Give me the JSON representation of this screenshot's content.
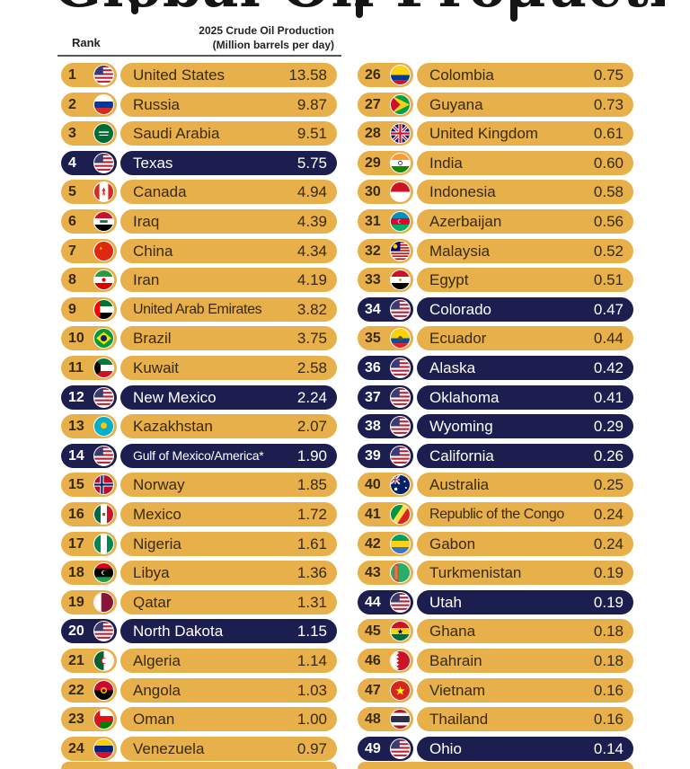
{
  "header": {
    "title_partial": "Global Oil Production",
    "rank_label": "Rank",
    "production_label_line1": "2025 Crude Oil Production",
    "production_label_line2": "(Million barrels per day)"
  },
  "colors": {
    "country_pill": "#e8b04a",
    "us_state_pill": "#1c1e4f",
    "country_text": "#3a2a0d",
    "state_text": "#ffffff"
  },
  "chart_data": {
    "type": "table",
    "columns": [
      "Rank",
      "Name",
      "2025 Crude Oil Production (Million barrels per day)"
    ],
    "rows": [
      {
        "rank": "1",
        "name": "United States",
        "value": "13.58",
        "kind": "country",
        "flag": "us-flag"
      },
      {
        "rank": "2",
        "name": "Russia",
        "value": "9.87",
        "kind": "country",
        "flag": "russia-flag"
      },
      {
        "rank": "3",
        "name": "Saudi Arabia",
        "value": "9.51",
        "kind": "country",
        "flag": "saudi-arabia-flag"
      },
      {
        "rank": "4",
        "name": "Texas",
        "value": "5.75",
        "kind": "state",
        "flag": "us-flag"
      },
      {
        "rank": "5",
        "name": "Canada",
        "value": "4.94",
        "kind": "country",
        "flag": "canada-flag"
      },
      {
        "rank": "6",
        "name": "Iraq",
        "value": "4.39",
        "kind": "country",
        "flag": "iraq-flag"
      },
      {
        "rank": "7",
        "name": "China",
        "value": "4.34",
        "kind": "country",
        "flag": "china-flag"
      },
      {
        "rank": "8",
        "name": "Iran",
        "value": "4.19",
        "kind": "country",
        "flag": "iran-flag"
      },
      {
        "rank": "9",
        "name": "United Arab Emirates",
        "value": "3.82",
        "kind": "country",
        "flag": "uae-flag"
      },
      {
        "rank": "10",
        "name": "Brazil",
        "value": "3.75",
        "kind": "country",
        "flag": "brazil-flag"
      },
      {
        "rank": "11",
        "name": "Kuwait",
        "value": "2.58",
        "kind": "country",
        "flag": "kuwait-flag"
      },
      {
        "rank": "12",
        "name": "New Mexico",
        "value": "2.24",
        "kind": "state",
        "flag": "us-flag"
      },
      {
        "rank": "13",
        "name": "Kazakhstan",
        "value": "2.07",
        "kind": "country",
        "flag": "kazakhstan-flag"
      },
      {
        "rank": "14",
        "name": "Gulf of Mexico/America*",
        "value": "1.90",
        "kind": "state",
        "flag": "us-flag"
      },
      {
        "rank": "15",
        "name": "Norway",
        "value": "1.85",
        "kind": "country",
        "flag": "norway-flag"
      },
      {
        "rank": "16",
        "name": "Mexico",
        "value": "1.72",
        "kind": "country",
        "flag": "mexico-flag"
      },
      {
        "rank": "17",
        "name": "Nigeria",
        "value": "1.61",
        "kind": "country",
        "flag": "nigeria-flag"
      },
      {
        "rank": "18",
        "name": "Libya",
        "value": "1.36",
        "kind": "country",
        "flag": "libya-flag"
      },
      {
        "rank": "19",
        "name": "Qatar",
        "value": "1.31",
        "kind": "country",
        "flag": "qatar-flag"
      },
      {
        "rank": "20",
        "name": "North Dakota",
        "value": "1.15",
        "kind": "state",
        "flag": "us-flag"
      },
      {
        "rank": "21",
        "name": "Algeria",
        "value": "1.14",
        "kind": "country",
        "flag": "algeria-flag"
      },
      {
        "rank": "22",
        "name": "Angola",
        "value": "1.03",
        "kind": "country",
        "flag": "angola-flag"
      },
      {
        "rank": "23",
        "name": "Oman",
        "value": "1.00",
        "kind": "country",
        "flag": "oman-flag"
      },
      {
        "rank": "24",
        "name": "Venezuela",
        "value": "0.97",
        "kind": "country",
        "flag": "venezuela-flag"
      },
      {
        "rank": "26",
        "name": "Colombia",
        "value": "0.75",
        "kind": "country",
        "flag": "colombia-flag"
      },
      {
        "rank": "27",
        "name": "Guyana",
        "value": "0.73",
        "kind": "country",
        "flag": "guyana-flag"
      },
      {
        "rank": "28",
        "name": "United Kingdom",
        "value": "0.61",
        "kind": "country",
        "flag": "uk-flag"
      },
      {
        "rank": "29",
        "name": "India",
        "value": "0.60",
        "kind": "country",
        "flag": "india-flag"
      },
      {
        "rank": "30",
        "name": "Indonesia",
        "value": "0.58",
        "kind": "country",
        "flag": "indonesia-flag"
      },
      {
        "rank": "31",
        "name": "Azerbaijan",
        "value": "0.56",
        "kind": "country",
        "flag": "azerbaijan-flag"
      },
      {
        "rank": "32",
        "name": "Malaysia",
        "value": "0.52",
        "kind": "country",
        "flag": "malaysia-flag"
      },
      {
        "rank": "33",
        "name": "Egypt",
        "value": "0.51",
        "kind": "country",
        "flag": "egypt-flag"
      },
      {
        "rank": "34",
        "name": "Colorado",
        "value": "0.47",
        "kind": "state",
        "flag": "us-flag"
      },
      {
        "rank": "35",
        "name": "Ecuador",
        "value": "0.44",
        "kind": "country",
        "flag": "ecuador-flag"
      },
      {
        "rank": "36",
        "name": "Alaska",
        "value": "0.42",
        "kind": "state",
        "flag": "us-flag"
      },
      {
        "rank": "37",
        "name": "Oklahoma",
        "value": "0.41",
        "kind": "state",
        "flag": "us-flag"
      },
      {
        "rank": "38",
        "name": "Wyoming",
        "value": "0.29",
        "kind": "state",
        "flag": "us-flag"
      },
      {
        "rank": "39",
        "name": "California",
        "value": "0.26",
        "kind": "state",
        "flag": "us-flag"
      },
      {
        "rank": "40",
        "name": "Australia",
        "value": "0.25",
        "kind": "country",
        "flag": "australia-flag"
      },
      {
        "rank": "41",
        "name": "Republic of the Congo",
        "value": "0.24",
        "kind": "country",
        "flag": "congo-flag"
      },
      {
        "rank": "42",
        "name": "Gabon",
        "value": "0.24",
        "kind": "country",
        "flag": "gabon-flag"
      },
      {
        "rank": "43",
        "name": "Turkmenistan",
        "value": "0.19",
        "kind": "country",
        "flag": "turkmenistan-flag"
      },
      {
        "rank": "44",
        "name": "Utah",
        "value": "0.19",
        "kind": "state",
        "flag": "us-flag"
      },
      {
        "rank": "45",
        "name": "Ghana",
        "value": "0.18",
        "kind": "country",
        "flag": "ghana-flag"
      },
      {
        "rank": "46",
        "name": "Bahrain",
        "value": "0.18",
        "kind": "country",
        "flag": "bahrain-flag"
      },
      {
        "rank": "47",
        "name": "Vietnam",
        "value": "0.16",
        "kind": "country",
        "flag": "vietnam-flag"
      },
      {
        "rank": "48",
        "name": "Thailand",
        "value": "0.16",
        "kind": "country",
        "flag": "thailand-flag"
      },
      {
        "rank": "49",
        "name": "Ohio",
        "value": "0.14",
        "kind": "state",
        "flag": "us-flag"
      }
    ]
  }
}
